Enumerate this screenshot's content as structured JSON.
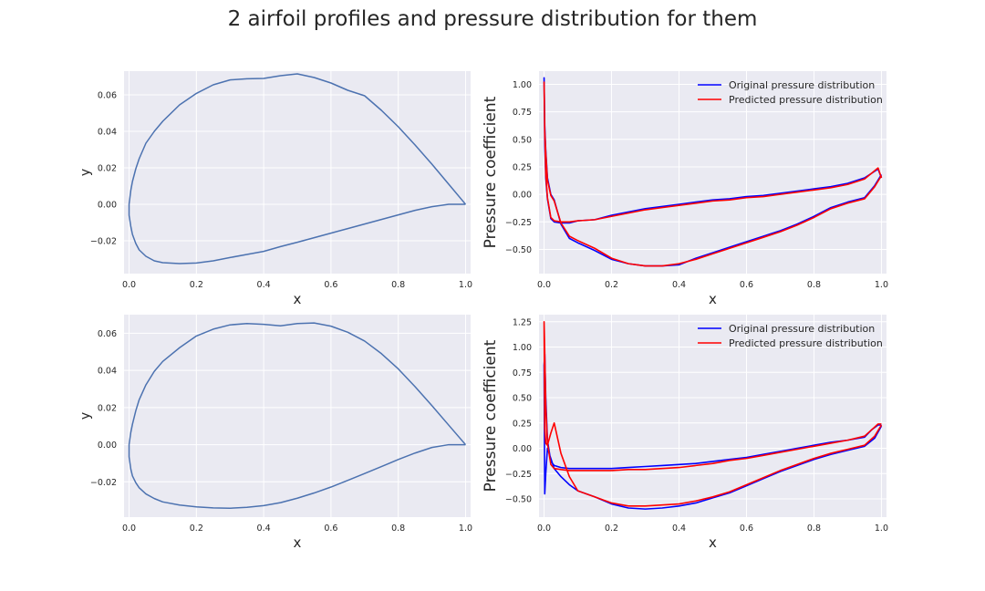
{
  "figure": {
    "suptitle": "2 airfoil profiles and pressure distribution for them"
  },
  "colors": {
    "axes_bg": "#eaeaf2",
    "grid": "#ffffff",
    "airfoil_line": "#4c72b0",
    "original": "#0000ff",
    "predicted": "#ff0000",
    "text": "#262626"
  },
  "chart_data": [
    {
      "type": "line",
      "xlabel": "x",
      "ylabel": "y",
      "xlim": [
        -0.015,
        1.015
      ],
      "ylim": [
        -0.038,
        0.073
      ],
      "xticks": [
        0.0,
        0.2,
        0.4,
        0.6,
        0.8,
        1.0
      ],
      "xtick_labels": [
        "0.0",
        "0.2",
        "0.4",
        "0.6",
        "0.8",
        "1.0"
      ],
      "yticks": [
        -0.02,
        0.0,
        0.02,
        0.04,
        0.06
      ],
      "ytick_labels": [
        "−0.02",
        "0.00",
        "0.02",
        "0.04",
        "0.06"
      ],
      "grid": true,
      "series": [
        {
          "x": [
            1.0,
            0.95,
            0.9,
            0.85,
            0.8,
            0.75,
            0.7,
            0.65,
            0.6,
            0.55,
            0.5,
            0.45,
            0.4,
            0.35,
            0.3,
            0.25,
            0.2,
            0.15,
            0.1,
            0.075,
            0.05,
            0.03,
            0.02,
            0.01,
            0.005,
            0.0,
            0.0,
            0.005,
            0.01,
            0.02,
            0.03,
            0.05,
            0.075,
            0.1,
            0.15,
            0.2,
            0.25,
            0.3,
            0.35,
            0.4,
            0.45,
            0.5,
            0.55,
            0.6,
            0.65,
            0.7,
            0.75,
            0.8,
            0.85,
            0.9,
            0.95,
            1.0
          ],
          "y": [
            0.0,
            0.011,
            0.022,
            0.0325,
            0.0425,
            0.0515,
            0.0595,
            0.0625,
            0.0665,
            0.0695,
            0.0715,
            0.0705,
            0.069,
            0.0688,
            0.0682,
            0.0655,
            0.0608,
            0.0545,
            0.0455,
            0.04,
            0.0335,
            0.025,
            0.0195,
            0.0125,
            0.0075,
            0.0,
            -0.006,
            -0.012,
            -0.0165,
            -0.0215,
            -0.025,
            -0.0285,
            -0.031,
            -0.032,
            -0.0325,
            -0.0322,
            -0.031,
            -0.0292,
            -0.0275,
            -0.0258,
            -0.0232,
            -0.0208,
            -0.0183,
            -0.0158,
            -0.0133,
            -0.0108,
            -0.0083,
            -0.0058,
            -0.0033,
            -0.0013,
            0.0,
            0.0
          ]
        }
      ]
    },
    {
      "type": "line",
      "xlabel": "x",
      "ylabel": "Pressure coefficient",
      "xlim": [
        -0.015,
        1.015
      ],
      "ylim": [
        -0.72,
        1.12
      ],
      "xticks": [
        0.0,
        0.2,
        0.4,
        0.6,
        0.8,
        1.0
      ],
      "xtick_labels": [
        "0.0",
        "0.2",
        "0.4",
        "0.6",
        "0.8",
        "1.0"
      ],
      "yticks": [
        -0.5,
        -0.25,
        0.0,
        0.25,
        0.5,
        0.75,
        1.0
      ],
      "ytick_labels": [
        "−0.50",
        "−0.25",
        "0.00",
        "0.25",
        "0.50",
        "0.75",
        "1.00"
      ],
      "grid": true,
      "legend": "top-right",
      "series": [
        {
          "name": "Original pressure distribution",
          "x": [
            1.0,
            0.99,
            0.95,
            0.9,
            0.85,
            0.8,
            0.75,
            0.7,
            0.65,
            0.6,
            0.55,
            0.5,
            0.45,
            0.4,
            0.35,
            0.3,
            0.25,
            0.2,
            0.15,
            0.1,
            0.075,
            0.05,
            0.03,
            0.02,
            0.01,
            0.005,
            0.002,
            0.0,
            0.002,
            0.005,
            0.01,
            0.02,
            0.03,
            0.05,
            0.075,
            0.1,
            0.15,
            0.2,
            0.25,
            0.3,
            0.35,
            0.4,
            0.45,
            0.5,
            0.55,
            0.6,
            0.65,
            0.7,
            0.75,
            0.8,
            0.85,
            0.9,
            0.95,
            0.98,
            1.0
          ],
          "y": [
            0.15,
            0.23,
            0.15,
            0.1,
            0.07,
            0.05,
            0.03,
            0.01,
            -0.01,
            -0.02,
            -0.04,
            -0.05,
            -0.07,
            -0.09,
            -0.11,
            -0.13,
            -0.16,
            -0.19,
            -0.23,
            -0.24,
            -0.26,
            -0.26,
            -0.25,
            -0.22,
            -0.04,
            0.15,
            0.45,
            1.06,
            0.62,
            0.4,
            0.15,
            0.0,
            -0.05,
            -0.27,
            -0.4,
            -0.44,
            -0.51,
            -0.59,
            -0.63,
            -0.65,
            -0.65,
            -0.64,
            -0.58,
            -0.53,
            -0.48,
            -0.43,
            -0.38,
            -0.33,
            -0.27,
            -0.2,
            -0.12,
            -0.07,
            -0.03,
            0.08,
            0.18
          ]
        },
        {
          "name": "Predicted pressure distribution",
          "x": [
            1.0,
            0.99,
            0.95,
            0.9,
            0.85,
            0.8,
            0.75,
            0.7,
            0.65,
            0.6,
            0.55,
            0.5,
            0.45,
            0.4,
            0.35,
            0.3,
            0.25,
            0.2,
            0.15,
            0.1,
            0.075,
            0.05,
            0.03,
            0.02,
            0.01,
            0.005,
            0.002,
            0.0,
            0.002,
            0.005,
            0.01,
            0.02,
            0.03,
            0.05,
            0.075,
            0.1,
            0.15,
            0.2,
            0.25,
            0.3,
            0.35,
            0.4,
            0.45,
            0.5,
            0.55,
            0.6,
            0.65,
            0.7,
            0.75,
            0.8,
            0.85,
            0.9,
            0.95,
            0.98,
            1.0
          ],
          "y": [
            0.15,
            0.24,
            0.14,
            0.09,
            0.06,
            0.04,
            0.02,
            0.0,
            -0.02,
            -0.03,
            -0.05,
            -0.06,
            -0.08,
            -0.1,
            -0.12,
            -0.14,
            -0.17,
            -0.2,
            -0.23,
            -0.24,
            -0.25,
            -0.25,
            -0.24,
            -0.21,
            -0.03,
            0.18,
            0.55,
            1.02,
            0.58,
            0.38,
            0.13,
            -0.01,
            -0.06,
            -0.26,
            -0.38,
            -0.42,
            -0.49,
            -0.58,
            -0.63,
            -0.65,
            -0.65,
            -0.63,
            -0.59,
            -0.54,
            -0.49,
            -0.44,
            -0.39,
            -0.34,
            -0.28,
            -0.21,
            -0.13,
            -0.08,
            -0.04,
            0.07,
            0.17
          ]
        }
      ]
    },
    {
      "type": "line",
      "xlabel": "x",
      "ylabel": "y",
      "xlim": [
        -0.015,
        1.015
      ],
      "ylim": [
        -0.039,
        0.07
      ],
      "xticks": [
        0.0,
        0.2,
        0.4,
        0.6,
        0.8,
        1.0
      ],
      "xtick_labels": [
        "0.0",
        "0.2",
        "0.4",
        "0.6",
        "0.8",
        "1.0"
      ],
      "yticks": [
        -0.02,
        0.0,
        0.02,
        0.04,
        0.06
      ],
      "ytick_labels": [
        "−0.02",
        "0.00",
        "0.02",
        "0.04",
        "0.06"
      ],
      "grid": true,
      "series": [
        {
          "x": [
            1.0,
            0.95,
            0.9,
            0.85,
            0.8,
            0.75,
            0.7,
            0.65,
            0.6,
            0.55,
            0.5,
            0.45,
            0.4,
            0.35,
            0.3,
            0.25,
            0.2,
            0.15,
            0.1,
            0.075,
            0.05,
            0.03,
            0.02,
            0.01,
            0.005,
            0.0,
            0.0,
            0.005,
            0.01,
            0.02,
            0.03,
            0.05,
            0.075,
            0.1,
            0.15,
            0.2,
            0.25,
            0.3,
            0.35,
            0.4,
            0.45,
            0.5,
            0.55,
            0.6,
            0.65,
            0.7,
            0.75,
            0.8,
            0.85,
            0.9,
            0.95,
            1.0
          ],
          "y": [
            0.0,
            0.0105,
            0.021,
            0.0312,
            0.0408,
            0.049,
            0.0558,
            0.0605,
            0.0638,
            0.0655,
            0.0652,
            0.064,
            0.0648,
            0.0652,
            0.0645,
            0.0622,
            0.0585,
            0.0522,
            0.0448,
            0.0395,
            0.0322,
            0.0242,
            0.0183,
            0.011,
            0.0065,
            0.0,
            -0.0065,
            -0.013,
            -0.0168,
            -0.0205,
            -0.0232,
            -0.0265,
            -0.029,
            -0.0308,
            -0.0325,
            -0.0335,
            -0.034,
            -0.0342,
            -0.0337,
            -0.0328,
            -0.0312,
            -0.0288,
            -0.026,
            -0.0228,
            -0.0192,
            -0.0155,
            -0.0118,
            -0.008,
            -0.0045,
            -0.0015,
            0.0,
            0.0
          ]
        }
      ]
    },
    {
      "type": "line",
      "xlabel": "x",
      "ylabel": "Pressure coefficient",
      "xlim": [
        -0.015,
        1.015
      ],
      "ylim": [
        -0.68,
        1.32
      ],
      "xticks": [
        0.0,
        0.2,
        0.4,
        0.6,
        0.8,
        1.0
      ],
      "xtick_labels": [
        "0.0",
        "0.2",
        "0.4",
        "0.6",
        "0.8",
        "1.0"
      ],
      "yticks": [
        -0.5,
        -0.25,
        0.0,
        0.25,
        0.5,
        0.75,
        1.0,
        1.25
      ],
      "ytick_labels": [
        "−0.50",
        "−0.25",
        "0.00",
        "0.25",
        "0.50",
        "0.75",
        "1.00",
        "1.25"
      ],
      "grid": true,
      "legend": "top-right",
      "series": [
        {
          "name": "Original pressure distribution",
          "x": [
            1.0,
            0.99,
            0.97,
            0.95,
            0.9,
            0.85,
            0.8,
            0.75,
            0.7,
            0.65,
            0.6,
            0.55,
            0.5,
            0.45,
            0.4,
            0.35,
            0.3,
            0.25,
            0.2,
            0.15,
            0.1,
            0.075,
            0.05,
            0.03,
            0.02,
            0.01,
            0.005,
            0.002,
            0.0,
            0.002,
            0.005,
            0.01,
            0.02,
            0.03,
            0.05,
            0.075,
            0.1,
            0.15,
            0.2,
            0.25,
            0.3,
            0.35,
            0.4,
            0.45,
            0.5,
            0.55,
            0.6,
            0.65,
            0.7,
            0.75,
            0.8,
            0.85,
            0.9,
            0.95,
            0.98,
            1.0
          ],
          "y": [
            0.23,
            0.23,
            0.18,
            0.11,
            0.08,
            0.06,
            0.03,
            0.0,
            -0.03,
            -0.06,
            -0.09,
            -0.11,
            -0.13,
            -0.15,
            -0.16,
            -0.17,
            -0.18,
            -0.19,
            -0.2,
            -0.2,
            -0.2,
            -0.2,
            -0.19,
            -0.17,
            -0.13,
            0.08,
            0.5,
            0.93,
            0.82,
            -0.45,
            -0.25,
            0.0,
            -0.1,
            -0.2,
            -0.28,
            -0.36,
            -0.42,
            -0.48,
            -0.55,
            -0.59,
            -0.6,
            -0.59,
            -0.57,
            -0.54,
            -0.49,
            -0.44,
            -0.37,
            -0.3,
            -0.23,
            -0.17,
            -0.11,
            -0.06,
            -0.02,
            0.02,
            0.1,
            0.22
          ]
        },
        {
          "name": "Predicted pressure distribution",
          "x": [
            1.0,
            0.99,
            0.97,
            0.95,
            0.9,
            0.85,
            0.8,
            0.75,
            0.7,
            0.65,
            0.6,
            0.55,
            0.5,
            0.45,
            0.4,
            0.35,
            0.3,
            0.25,
            0.2,
            0.15,
            0.1,
            0.075,
            0.05,
            0.03,
            0.02,
            0.01,
            0.005,
            0.002,
            0.0,
            0.002,
            0.005,
            0.01,
            0.02,
            0.03,
            0.05,
            0.075,
            0.1,
            0.15,
            0.2,
            0.25,
            0.3,
            0.35,
            0.4,
            0.45,
            0.5,
            0.55,
            0.6,
            0.65,
            0.7,
            0.75,
            0.8,
            0.85,
            0.9,
            0.95,
            0.98,
            1.0
          ],
          "y": [
            0.24,
            0.24,
            0.18,
            0.12,
            0.08,
            0.05,
            0.02,
            -0.01,
            -0.04,
            -0.07,
            -0.1,
            -0.12,
            -0.15,
            -0.17,
            -0.19,
            -0.2,
            -0.21,
            -0.21,
            -0.22,
            -0.22,
            -0.22,
            -0.22,
            -0.21,
            -0.2,
            -0.16,
            0.05,
            0.42,
            0.95,
            1.25,
            0.2,
            0.05,
            0.03,
            0.15,
            0.25,
            -0.05,
            -0.28,
            -0.42,
            -0.48,
            -0.54,
            -0.57,
            -0.57,
            -0.56,
            -0.55,
            -0.52,
            -0.48,
            -0.43,
            -0.36,
            -0.29,
            -0.22,
            -0.16,
            -0.1,
            -0.05,
            -0.01,
            0.03,
            0.12,
            0.23
          ]
        }
      ]
    }
  ]
}
